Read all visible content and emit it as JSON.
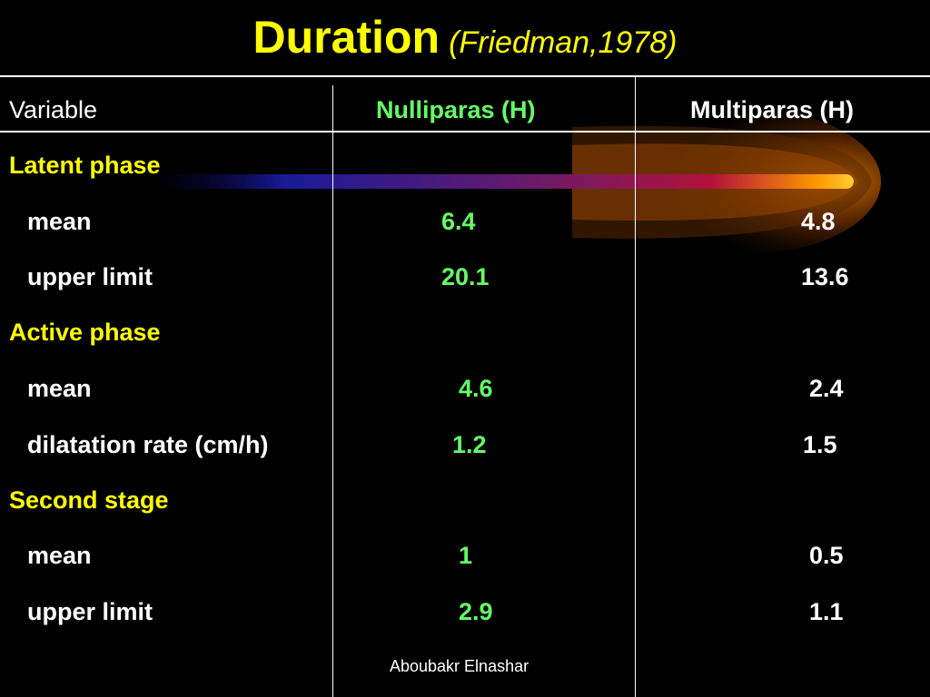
{
  "title": {
    "main": "Duration",
    "sub": "(Friedman,1978)"
  },
  "headers": {
    "variable": "Variable",
    "nulliparas": "Nulliparas (H)",
    "multiparas": "Multiparas (H)"
  },
  "rows": [
    {
      "label": "Latent phase"
    },
    {
      "label": "mean",
      "nulliparas": "6.4",
      "multiparas": "4.8"
    },
    {
      "label": "upper limit",
      "nulliparas": "20.1",
      "multiparas": "13.6"
    },
    {
      "label": "Active phase"
    },
    {
      "label": "mean",
      "nulliparas": "4.6",
      "multiparas": "2.4"
    },
    {
      "label": "dilatation rate (cm/h)",
      "nulliparas": "1.2",
      "multiparas": "1.5"
    },
    {
      "label": "Second stage"
    },
    {
      "label": "mean",
      "nulliparas": "1",
      "multiparas": "0.5"
    },
    {
      "label": "upper limit",
      "nulliparas": "2.9",
      "multiparas": "1.1"
    }
  ],
  "footer": "Aboubakr Elnashar",
  "colors": {
    "background": "#000000",
    "title": "#ffff00",
    "section": "#ffff00",
    "nulliparas_values": "#66ff66",
    "multiparas_values": "#ffffff"
  }
}
